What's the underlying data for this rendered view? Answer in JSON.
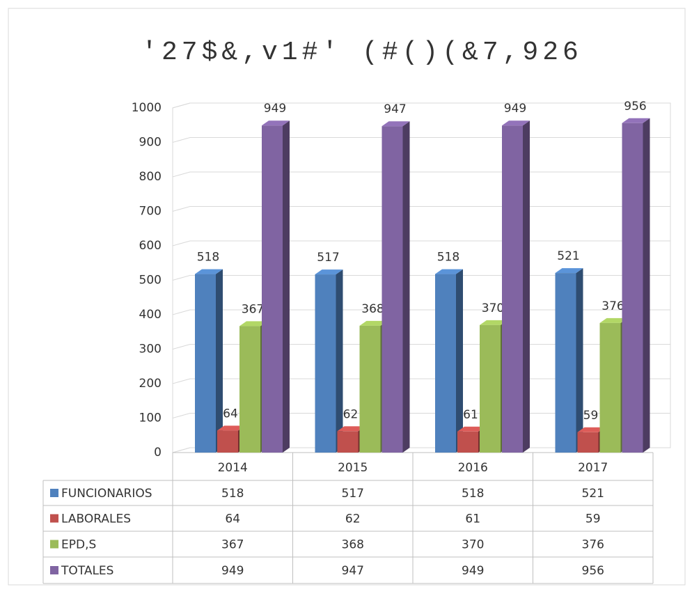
{
  "chart_data": {
    "type": "bar3d",
    "title": "'27$&,v1#' (#()(&7,926",
    "categories": [
      "2014",
      "2015",
      "2016",
      "2017"
    ],
    "series": [
      {
        "name": "FUNCIONARIOS",
        "color": "#4f81bd",
        "values": [
          518,
          517,
          518,
          521
        ]
      },
      {
        "name": "LABORALES",
        "color": "#c0504d",
        "values": [
          64,
          62,
          61,
          59
        ]
      },
      {
        "name": "EPD,S",
        "color": "#9bbb59",
        "values": [
          367,
          368,
          370,
          376
        ]
      },
      {
        "name": "TOTALES",
        "color": "#8064a2",
        "values": [
          949,
          947,
          949,
          956
        ]
      }
    ],
    "ylim": [
      0,
      1000
    ],
    "yticks": [
      0,
      100,
      200,
      300,
      400,
      500,
      600,
      700,
      800,
      900,
      1000
    ],
    "grid": true,
    "data_table": true
  }
}
